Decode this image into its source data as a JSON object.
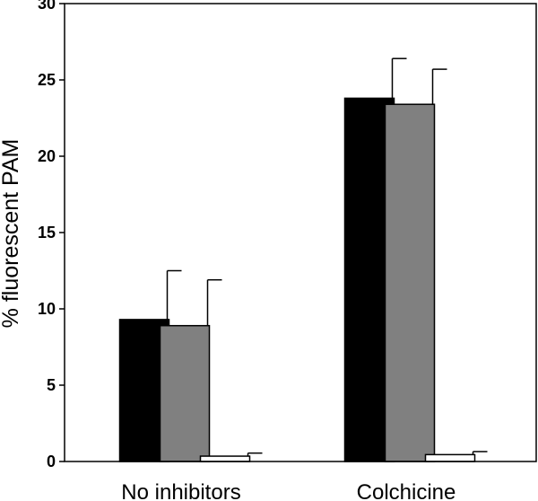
{
  "chart_data": {
    "type": "bar",
    "title": "",
    "xlabel": "",
    "ylabel": "% fluorescent PAM",
    "ylim": [
      0,
      30
    ],
    "yticks": [
      0,
      5,
      10,
      15,
      20,
      25,
      30
    ],
    "categories": [
      "No inhibitors",
      "Colchicine"
    ],
    "series": [
      {
        "color": "#000000",
        "values": [
          9.3,
          23.8
        ],
        "errors": [
          3.2,
          2.6
        ]
      },
      {
        "color": "#808080",
        "values": [
          8.9,
          23.4
        ],
        "errors": [
          3.0,
          2.3
        ]
      },
      {
        "color": "#ffffff",
        "values": [
          0.35,
          0.45
        ],
        "errors": [
          0.2,
          0.2
        ]
      }
    ],
    "grid": false,
    "legend": "none"
  }
}
